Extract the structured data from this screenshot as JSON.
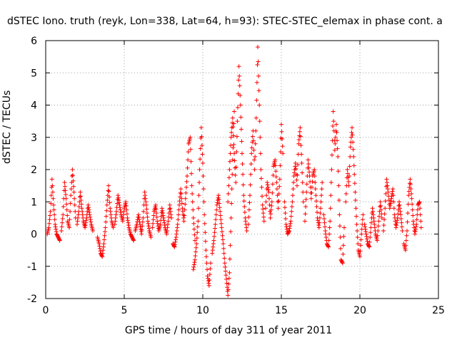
{
  "chart_data": {
    "type": "scatter",
    "title": "dSTEC Iono. truth (reyk, Lon=338, Lat=64, h=93): STEC-STEC_elemax in phase cont. a",
    "xlabel": "GPS time / hours of day 311 of year 2011",
    "ylabel": "dSTEC  / TECUs",
    "xlim": [
      0,
      25
    ],
    "ylim": [
      -2,
      6
    ],
    "xticks": [
      "0",
      "5",
      "10",
      "15",
      "20",
      "25"
    ],
    "yticks": [
      "-2",
      "-1",
      "0",
      "1",
      "2",
      "3",
      "4",
      "5",
      "6"
    ],
    "grid": true,
    "marker": "+",
    "color": "#ff0000",
    "series": [
      {
        "arcs": [
          {
            "x": [
              0.1,
              0.2,
              0.3,
              0.4,
              0.5,
              0.6,
              0.7,
              0.8,
              0.9
            ],
            "y": [
              0.0,
              0.2,
              0.7,
              1.7,
              0.9,
              0.3,
              0.0,
              -0.1,
              -0.2
            ]
          },
          {
            "x": [
              1.0,
              1.1,
              1.2,
              1.3,
              1.4,
              1.5,
              1.6,
              1.7,
              1.8,
              1.9
            ],
            "y": [
              0.1,
              0.6,
              1.6,
              1.1,
              0.4,
              0.2,
              1.2,
              2.0,
              1.3,
              0.5
            ]
          },
          {
            "x": [
              2.0,
              2.1,
              2.2,
              2.3,
              2.4,
              2.5,
              2.6,
              2.7,
              2.8,
              2.9,
              3.0
            ],
            "y": [
              0.3,
              0.7,
              1.3,
              0.8,
              0.4,
              0.2,
              0.5,
              0.9,
              0.6,
              0.3,
              0.1
            ]
          },
          {
            "x": [
              3.3,
              3.4,
              3.5,
              3.6,
              3.7,
              3.8,
              3.9,
              4.0,
              4.1,
              4.2,
              4.3
            ],
            "y": [
              -0.1,
              -0.3,
              -0.6,
              -0.7,
              -0.3,
              0.2,
              0.9,
              1.5,
              0.8,
              0.4,
              0.2
            ]
          },
          {
            "x": [
              4.4,
              4.5,
              4.6,
              4.7,
              4.8,
              4.9,
              5.0,
              5.1,
              5.2,
              5.3,
              5.4,
              5.5,
              5.6
            ],
            "y": [
              0.3,
              0.7,
              1.2,
              0.9,
              0.6,
              0.4,
              0.8,
              1.0,
              0.5,
              0.2,
              0.0,
              -0.1,
              -0.2
            ]
          },
          {
            "x": [
              5.7,
              5.8,
              5.9,
              6.0,
              6.1,
              6.2,
              6.3,
              6.4,
              6.5,
              6.6,
              6.7
            ],
            "y": [
              0.1,
              0.3,
              0.6,
              0.3,
              0.0,
              0.5,
              1.3,
              0.9,
              0.4,
              0.1,
              -0.1
            ]
          },
          {
            "x": [
              6.8,
              6.9,
              7.0,
              7.1,
              7.2,
              7.3,
              7.4,
              7.5,
              7.6,
              7.7,
              7.8,
              7.9,
              8.0
            ],
            "y": [
              0.2,
              0.7,
              0.9,
              0.4,
              0.1,
              0.3,
              0.8,
              0.5,
              0.2,
              0.0,
              0.4,
              0.9,
              0.5
            ]
          },
          {
            "x": [
              8.1,
              8.2,
              8.3,
              8.4,
              8.5,
              8.6,
              8.7,
              8.8,
              8.9,
              9.0,
              9.1,
              9.2,
              9.3,
              9.4,
              9.5
            ],
            "y": [
              -0.3,
              -0.4,
              -0.1,
              0.3,
              0.9,
              1.4,
              0.8,
              0.4,
              1.1,
              1.8,
              2.8,
              3.0,
              1.5,
              0.5,
              -0.2
            ]
          },
          {
            "x": [
              9.4,
              9.5,
              9.6,
              9.7,
              9.8,
              9.9,
              10.0,
              10.1,
              10.2,
              10.3,
              10.4,
              10.5
            ],
            "y": [
              -1.1,
              -0.8,
              -0.3,
              0.4,
              2.0,
              3.3,
              2.2,
              0.6,
              -0.5,
              -1.3,
              -1.6,
              -0.9
            ]
          },
          {
            "x": [
              10.6,
              10.7,
              10.8,
              10.9,
              11.0,
              11.1,
              11.2,
              11.3,
              11.4,
              11.5,
              11.6,
              11.7,
              11.8,
              11.9,
              12.0
            ],
            "y": [
              -0.6,
              -0.2,
              0.3,
              0.9,
              1.2,
              0.7,
              0.2,
              -0.3,
              -0.9,
              -1.4,
              -1.9,
              -1.2,
              0.5,
              2.3,
              3.8
            ]
          },
          {
            "x": [
              11.6,
              11.7,
              11.8,
              11.9,
              12.0,
              12.1,
              12.2,
              12.3,
              12.4,
              12.5,
              12.6,
              12.7,
              12.8
            ],
            "y": [
              1.0,
              2.0,
              3.0,
              3.6,
              2.5,
              1.6,
              3.5,
              5.2,
              4.0,
              2.5,
              1.2,
              0.5,
              0.1
            ]
          },
          {
            "x": [
              12.9,
              13.0,
              13.1,
              13.2,
              13.3,
              13.4,
              13.5,
              13.6,
              13.7,
              13.8,
              13.9
            ],
            "y": [
              0.3,
              1.2,
              2.5,
              3.2,
              2.0,
              3.6,
              5.8,
              4.0,
              2.0,
              0.9,
              0.4
            ]
          },
          {
            "x": [
              14.0,
              14.1,
              14.2,
              14.3,
              14.4,
              14.5,
              14.6,
              14.7,
              14.8,
              14.9,
              15.0,
              15.1
            ],
            "y": [
              0.8,
              1.6,
              1.3,
              0.5,
              1.0,
              2.1,
              2.3,
              1.6,
              0.8,
              1.7,
              3.4,
              2.5
            ]
          },
          {
            "x": [
              15.2,
              15.3,
              15.4,
              15.5,
              15.6,
              15.7,
              15.8,
              15.9,
              16.0,
              16.1,
              16.2,
              16.3,
              16.4
            ],
            "y": [
              1.0,
              0.3,
              0.0,
              0.1,
              0.4,
              1.0,
              1.8,
              2.2,
              1.5,
              2.8,
              3.3,
              2.2,
              1.0
            ]
          },
          {
            "x": [
              16.5,
              16.6,
              16.7,
              16.8,
              16.9,
              17.0,
              17.1,
              17.2,
              17.3,
              17.4,
              17.5,
              17.6
            ],
            "y": [
              0.4,
              1.3,
              2.3,
              1.8,
              1.1,
              1.8,
              2.0,
              1.2,
              0.5,
              0.2,
              0.8,
              1.6
            ]
          },
          {
            "x": [
              17.7,
              17.8,
              17.9,
              18.0,
              18.1,
              18.2,
              18.3,
              18.4,
              18.5,
              18.6,
              18.7,
              18.8,
              18.9,
              19.0
            ],
            "y": [
              0.6,
              0.1,
              -0.3,
              -0.4,
              0.4,
              2.0,
              3.8,
              2.6,
              3.4,
              2.4,
              0.6,
              -0.8,
              -0.9,
              0.2
            ]
          },
          {
            "x": [
              19.1,
              19.2,
              19.3,
              19.4,
              19.5,
              19.6,
              19.7,
              19.8,
              19.9,
              20.0,
              20.1,
              20.2
            ],
            "y": [
              1.0,
              2.0,
              1.5,
              2.7,
              3.3,
              2.4,
              1.3,
              0.3,
              -0.5,
              -0.7,
              0.0,
              0.6
            ]
          },
          {
            "x": [
              20.3,
              20.4,
              20.5,
              20.6,
              20.7,
              20.8,
              20.9,
              21.0,
              21.1,
              21.2,
              21.3,
              21.4
            ],
            "y": [
              0.3,
              0.0,
              -0.3,
              -0.4,
              0.2,
              0.8,
              0.4,
              0.0,
              -0.2,
              0.4,
              1.0,
              0.5
            ]
          },
          {
            "x": [
              21.5,
              21.6,
              21.7,
              21.8,
              21.9,
              22.0,
              22.1,
              22.2,
              22.3,
              22.4,
              22.5,
              22.6,
              22.7
            ],
            "y": [
              0.1,
              0.8,
              1.7,
              1.3,
              0.8,
              1.1,
              1.4,
              0.6,
              0.2,
              0.5,
              1.0,
              0.6,
              0.1
            ]
          },
          {
            "x": [
              22.8,
              22.9,
              23.0,
              23.1,
              23.2,
              23.3,
              23.4,
              23.5,
              23.6,
              23.7,
              23.8,
              23.9
            ],
            "y": [
              -0.3,
              -0.5,
              0.1,
              1.2,
              1.7,
              1.1,
              0.4,
              0.0,
              0.3,
              0.9,
              1.0,
              0.2
            ]
          }
        ]
      }
    ]
  }
}
